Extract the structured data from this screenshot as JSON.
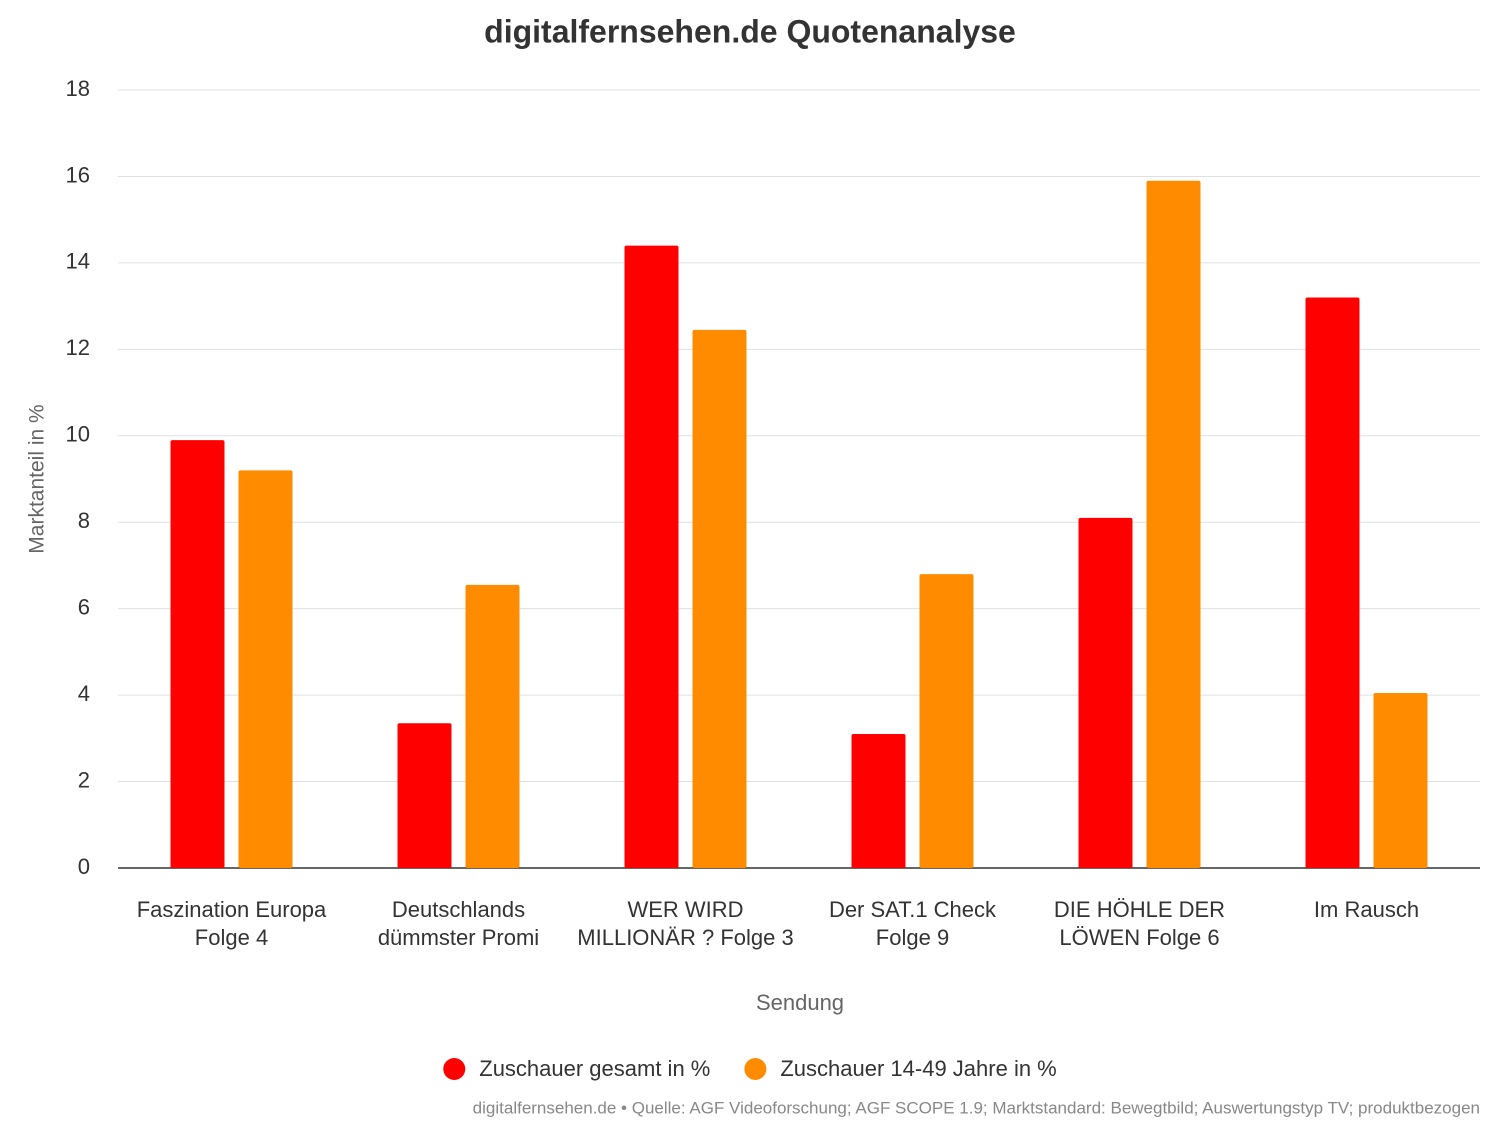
{
  "chart_data": {
    "type": "bar",
    "title": "digitalfernsehen.de Quotenanalyse",
    "x_label": "Sendung",
    "y_label": "Marktanteil in %",
    "footer": "digitalfernsehen.de • Quelle: AGF Videoforschung; AGF SCOPE 1.9; Marktstandard: Bewegtbild; Auswertungstyp TV; produktbezogen",
    "categories": [
      "Faszination Europa Folge 4",
      "Deutschlands dümmster Promi",
      "WER WIRD MILLIONÄR ? Folge 3",
      "Der SAT.1 Check Folge 9",
      "DIE HÖHLE DER LÖWEN Folge 6",
      "Im Rausch"
    ],
    "series": [
      {
        "name": "Zuschauer gesamt in %",
        "color": "#ff0000",
        "values": [
          9.9,
          3.35,
          14.4,
          3.1,
          8.1,
          13.2
        ]
      },
      {
        "name": "Zuschauer 14-49 Jahre in %",
        "color": "#ff8c00",
        "values": [
          9.2,
          6.55,
          12.45,
          6.8,
          15.9,
          4.05
        ]
      }
    ],
    "ylim": [
      0,
      18
    ],
    "yticks": [
      0,
      2,
      4,
      6,
      8,
      10,
      12,
      14,
      16,
      18
    ],
    "grid": true,
    "legend": "bottom"
  }
}
